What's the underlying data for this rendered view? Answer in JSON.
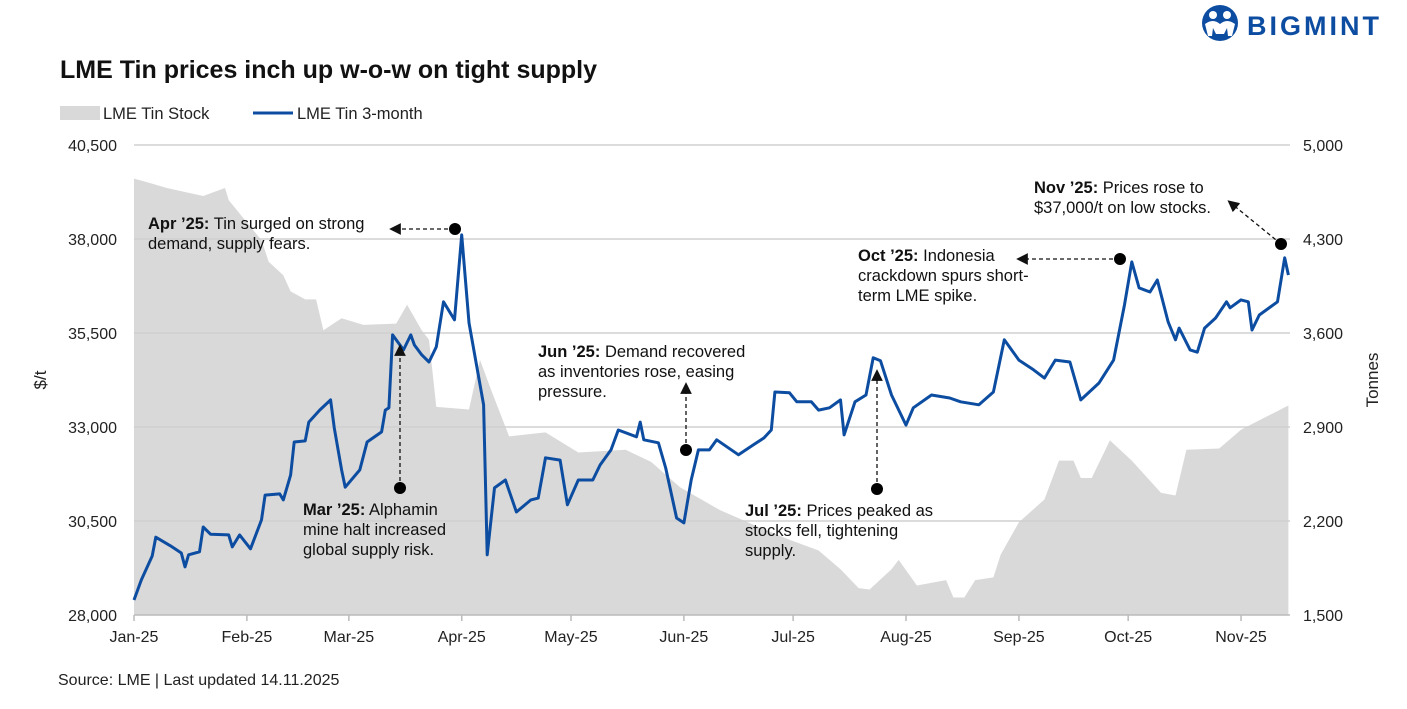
{
  "brand": {
    "logo_text": "BIGMINT",
    "color": "#0d4da1"
  },
  "chart_data": {
    "type": "line+area",
    "title": "LME Tin prices inch up w-o-w on tight supply",
    "source": "Source: LME | Last updated 14.11.2025",
    "ylabel_left": "$/t",
    "ylabel_right": "Tonnes",
    "ylim_left": [
      28000,
      40500
    ],
    "ylim_right": [
      1500,
      5000
    ],
    "xlim": [
      "2025-01-01",
      "2025-11-14"
    ],
    "grid": "horizontal",
    "legend_placement": "top-left",
    "left_ticks": [
      "28,000",
      "30,500",
      "33,000",
      "35,500",
      "38,000",
      "40,500"
    ],
    "left_tick_values": [
      28000,
      30500,
      33000,
      35500,
      38000,
      40500
    ],
    "right_ticks": [
      "1,500",
      "2,200",
      "2,900",
      "3,600",
      "4,300",
      "5,000"
    ],
    "right_tick_values": [
      1500,
      2200,
      2900,
      3600,
      4300,
      5000
    ],
    "x_ticks": [
      "Jan-25",
      "Feb-25",
      "Mar-25",
      "Apr-25",
      "May-25",
      "Jun-25",
      "Jul-25",
      "Aug-25",
      "Sep-25",
      "Oct-25",
      "Nov-25"
    ],
    "x_tick_dates": [
      "2025-01-01",
      "2025-02-01",
      "2025-03-01",
      "2025-04-01",
      "2025-05-01",
      "2025-06-01",
      "2025-07-01",
      "2025-08-01",
      "2025-09-01",
      "2025-10-01",
      "2025-11-01"
    ],
    "series": [
      {
        "name": "LME Tin Stock",
        "type": "area",
        "axis": "right",
        "color": "#d9d9d9",
        "points": [
          [
            "2025-01-01",
            4750
          ],
          [
            "2025-01-05",
            4720
          ],
          [
            "2025-01-10",
            4680
          ],
          [
            "2025-01-15",
            4650
          ],
          [
            "2025-01-20",
            4620
          ],
          [
            "2025-01-26",
            4680
          ],
          [
            "2025-01-27",
            4590
          ],
          [
            "2025-02-05",
            4290
          ],
          [
            "2025-02-07",
            4130
          ],
          [
            "2025-02-11",
            4030
          ],
          [
            "2025-02-13",
            3910
          ],
          [
            "2025-02-17",
            3850
          ],
          [
            "2025-02-20",
            3850
          ],
          [
            "2025-02-22",
            3620
          ],
          [
            "2025-02-27",
            3710
          ],
          [
            "2025-03-05",
            3660
          ],
          [
            "2025-03-14",
            3670
          ],
          [
            "2025-03-17",
            3810
          ],
          [
            "2025-03-21",
            3620
          ],
          [
            "2025-03-23",
            3550
          ],
          [
            "2025-03-25",
            3050
          ],
          [
            "2025-04-03",
            3030
          ],
          [
            "2025-04-06",
            3400
          ],
          [
            "2025-04-09",
            3180
          ],
          [
            "2025-04-14",
            2830
          ],
          [
            "2025-04-24",
            2860
          ],
          [
            "2025-05-03",
            2710
          ],
          [
            "2025-05-16",
            2730
          ],
          [
            "2025-05-23",
            2640
          ],
          [
            "2025-05-31",
            2450
          ],
          [
            "2025-06-11",
            2280
          ],
          [
            "2025-06-22",
            2150
          ],
          [
            "2025-06-30",
            2060
          ],
          [
            "2025-07-08",
            1980
          ],
          [
            "2025-07-14",
            1840
          ],
          [
            "2025-07-19",
            1700
          ],
          [
            "2025-07-22",
            1690
          ],
          [
            "2025-07-28",
            1840
          ],
          [
            "2025-07-30",
            1910
          ],
          [
            "2025-08-04",
            1720
          ],
          [
            "2025-08-12",
            1760
          ],
          [
            "2025-08-14",
            1630
          ],
          [
            "2025-08-17",
            1630
          ],
          [
            "2025-08-20",
            1760
          ],
          [
            "2025-08-25",
            1780
          ],
          [
            "2025-08-27",
            1950
          ],
          [
            "2025-09-01",
            2190
          ],
          [
            "2025-09-08",
            2360
          ],
          [
            "2025-09-12",
            2650
          ],
          [
            "2025-09-16",
            2650
          ],
          [
            "2025-09-18",
            2520
          ],
          [
            "2025-09-21",
            2520
          ],
          [
            "2025-09-26",
            2800
          ],
          [
            "2025-10-02",
            2650
          ],
          [
            "2025-10-10",
            2410
          ],
          [
            "2025-10-14",
            2390
          ],
          [
            "2025-10-17",
            2730
          ],
          [
            "2025-10-26",
            2740
          ],
          [
            "2025-11-01",
            2880
          ],
          [
            "2025-11-06",
            2950
          ],
          [
            "2025-11-14",
            3060
          ]
        ]
      },
      {
        "name": "LME Tin 3-month",
        "type": "line",
        "axis": "left",
        "color": "#0d4da1",
        "points": [
          [
            "2025-01-01",
            28400
          ],
          [
            "2025-01-03",
            28930
          ],
          [
            "2025-01-06",
            29570
          ],
          [
            "2025-01-07",
            30070
          ],
          [
            "2025-01-11",
            29840
          ],
          [
            "2025-01-14",
            29650
          ],
          [
            "2025-01-15",
            29280
          ],
          [
            "2025-01-16",
            29600
          ],
          [
            "2025-01-19",
            29680
          ],
          [
            "2025-01-20",
            30340
          ],
          [
            "2025-01-22",
            30150
          ],
          [
            "2025-01-27",
            30130
          ],
          [
            "2025-01-28",
            29810
          ],
          [
            "2025-01-30",
            30130
          ],
          [
            "2025-02-02",
            29760
          ],
          [
            "2025-02-05",
            30530
          ],
          [
            "2025-02-06",
            31190
          ],
          [
            "2025-02-10",
            31220
          ],
          [
            "2025-02-11",
            31060
          ],
          [
            "2025-02-13",
            31720
          ],
          [
            "2025-02-14",
            32600
          ],
          [
            "2025-02-17",
            32630
          ],
          [
            "2025-02-18",
            33130
          ],
          [
            "2025-02-21",
            33450
          ],
          [
            "2025-02-24",
            33720
          ],
          [
            "2025-02-25",
            32970
          ],
          [
            "2025-02-27",
            31860
          ],
          [
            "2025-02-28",
            31400
          ],
          [
            "2025-03-04",
            31860
          ],
          [
            "2025-03-06",
            32600
          ],
          [
            "2025-03-10",
            32870
          ],
          [
            "2025-03-11",
            33450
          ],
          [
            "2025-03-12",
            33510
          ],
          [
            "2025-03-13",
            35450
          ],
          [
            "2025-03-16",
            35050
          ],
          [
            "2025-03-18",
            35450
          ],
          [
            "2025-03-19",
            35180
          ],
          [
            "2025-03-21",
            34920
          ],
          [
            "2025-03-23",
            34730
          ],
          [
            "2025-03-25",
            35130
          ],
          [
            "2025-03-27",
            36330
          ],
          [
            "2025-03-30",
            35850
          ],
          [
            "2025-04-01",
            38110
          ],
          [
            "2025-04-03",
            35770
          ],
          [
            "2025-04-07",
            33590
          ],
          [
            "2025-04-08",
            29600
          ],
          [
            "2025-04-10",
            31380
          ],
          [
            "2025-04-13",
            31590
          ],
          [
            "2025-04-16",
            30740
          ],
          [
            "2025-04-20",
            31060
          ],
          [
            "2025-04-22",
            31110
          ],
          [
            "2025-04-24",
            32180
          ],
          [
            "2025-04-28",
            32120
          ],
          [
            "2025-04-30",
            30930
          ],
          [
            "2025-05-03",
            31590
          ],
          [
            "2025-05-07",
            31590
          ],
          [
            "2025-05-09",
            31990
          ],
          [
            "2025-05-12",
            32390
          ],
          [
            "2025-05-14",
            32920
          ],
          [
            "2025-05-19",
            32740
          ],
          [
            "2025-05-20",
            33130
          ],
          [
            "2025-05-21",
            32660
          ],
          [
            "2025-05-25",
            32580
          ],
          [
            "2025-05-27",
            31910
          ],
          [
            "2025-05-30",
            30580
          ],
          [
            "2025-06-01",
            30450
          ],
          [
            "2025-06-03",
            31590
          ],
          [
            "2025-06-05",
            32390
          ],
          [
            "2025-06-08",
            32390
          ],
          [
            "2025-06-10",
            32660
          ],
          [
            "2025-06-16",
            32260
          ],
          [
            "2025-06-20",
            32520
          ],
          [
            "2025-06-23",
            32710
          ],
          [
            "2025-06-25",
            32920
          ],
          [
            "2025-06-26",
            33930
          ],
          [
            "2025-06-30",
            33910
          ],
          [
            "2025-07-02",
            33670
          ],
          [
            "2025-07-06",
            33670
          ],
          [
            "2025-07-08",
            33450
          ],
          [
            "2025-07-11",
            33510
          ],
          [
            "2025-07-14",
            33720
          ],
          [
            "2025-07-15",
            32790
          ],
          [
            "2025-07-18",
            33670
          ],
          [
            "2025-07-21",
            33850
          ],
          [
            "2025-07-23",
            34840
          ],
          [
            "2025-07-25",
            34760
          ],
          [
            "2025-07-28",
            33850
          ],
          [
            "2025-08-01",
            33050
          ],
          [
            "2025-08-03",
            33510
          ],
          [
            "2025-08-08",
            33850
          ],
          [
            "2025-08-13",
            33770
          ],
          [
            "2025-08-16",
            33670
          ],
          [
            "2025-08-21",
            33590
          ],
          [
            "2025-08-25",
            33930
          ],
          [
            "2025-08-28",
            35320
          ],
          [
            "2025-09-01",
            34780
          ],
          [
            "2025-09-05",
            34520
          ],
          [
            "2025-09-08",
            34300
          ],
          [
            "2025-09-11",
            34780
          ],
          [
            "2025-09-15",
            34730
          ],
          [
            "2025-09-18",
            33720
          ],
          [
            "2025-09-23",
            34170
          ],
          [
            "2025-09-27",
            34780
          ],
          [
            "2025-09-30",
            36250
          ],
          [
            "2025-10-02",
            37390
          ],
          [
            "2025-10-04",
            36700
          ],
          [
            "2025-10-07",
            36590
          ],
          [
            "2025-10-09",
            36910
          ],
          [
            "2025-10-12",
            35790
          ],
          [
            "2025-10-14",
            35320
          ],
          [
            "2025-10-15",
            35630
          ],
          [
            "2025-10-18",
            35050
          ],
          [
            "2025-10-20",
            34990
          ],
          [
            "2025-10-22",
            35630
          ],
          [
            "2025-10-25",
            35900
          ],
          [
            "2025-10-28",
            36330
          ],
          [
            "2025-10-29",
            36170
          ],
          [
            "2025-11-01",
            36380
          ],
          [
            "2025-11-03",
            36330
          ],
          [
            "2025-11-04",
            35580
          ],
          [
            "2025-11-06",
            35980
          ],
          [
            "2025-11-11",
            36330
          ],
          [
            "2025-11-13",
            37500
          ],
          [
            "2025-11-14",
            37040
          ]
        ]
      }
    ],
    "annotations": [
      {
        "bold": "Apr ’25:",
        "lines": [
          " Tin surged on strong",
          "demand, supply fears."
        ]
      },
      {
        "bold": "Mar ’25:",
        "lines": [
          " Alphamin",
          "mine halt increased",
          "global supply risk."
        ]
      },
      {
        "bold": "Jun ’25:",
        "lines": [
          " Demand recovered",
          "as inventories rose, easing",
          "pressure."
        ]
      },
      {
        "bold": "Jul ’25:",
        "lines": [
          " Prices peaked as",
          "stocks fell, tightening",
          "supply."
        ]
      },
      {
        "bold": "Oct ’25:",
        "lines": [
          " Indonesia",
          "crackdown spurs short-",
          "term LME spike."
        ]
      },
      {
        "bold": "Nov ’25:",
        "lines": [
          " Prices rose to",
          "$37,000/t on low stocks."
        ]
      }
    ]
  }
}
